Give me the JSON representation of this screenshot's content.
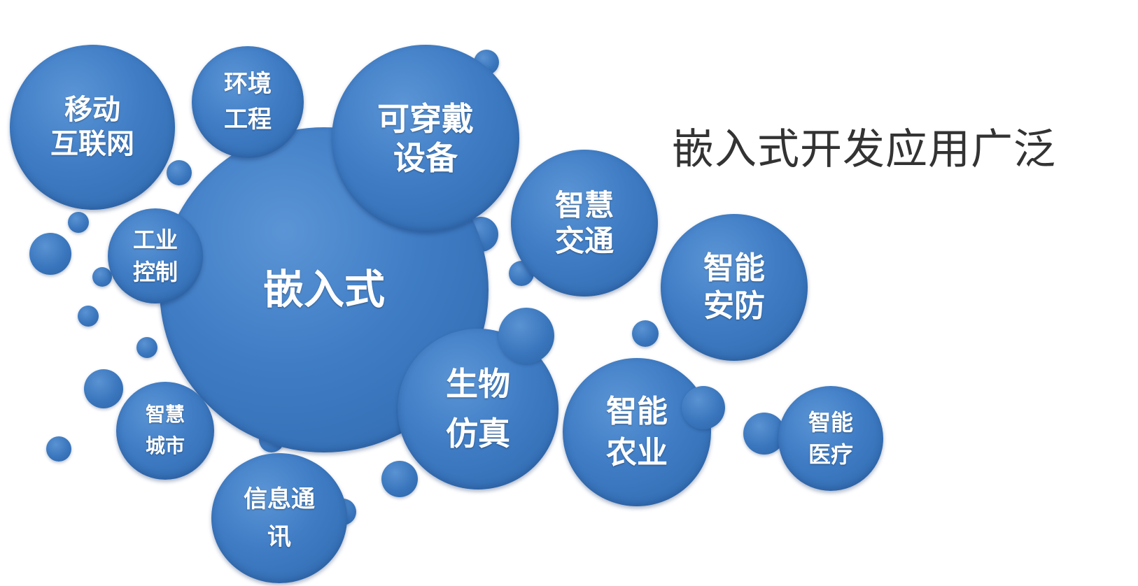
{
  "title": "嵌入式开发应用广泛",
  "center": {
    "line1": "嵌入式"
  },
  "bubbles": {
    "mobile_internet": {
      "line1": "移动",
      "line2": "互联网"
    },
    "environment_engineering": {
      "line1": "环境",
      "line2": "工程"
    },
    "wearable_devices": {
      "line1": "可穿戴",
      "line2": "设备"
    },
    "smart_transport": {
      "line1": "智慧",
      "line2": "交通"
    },
    "smart_security": {
      "line1": "智能",
      "line2": "安防"
    },
    "industrial_control": {
      "line1": "工业",
      "line2": "控制"
    },
    "smart_city": {
      "line1": "智慧",
      "line2": "城市"
    },
    "info_communication": {
      "line1": "信息通",
      "line2": "讯"
    },
    "bio_simulation": {
      "line1": "生物",
      "line2": "仿真"
    },
    "smart_agriculture": {
      "line1": "智能",
      "line2": "农业"
    },
    "smart_healthcare": {
      "line1": "智能",
      "line2": "医疗"
    }
  },
  "colors": {
    "bubble": "#3f7cc4",
    "title": "#333333",
    "text": "#ffffff"
  }
}
